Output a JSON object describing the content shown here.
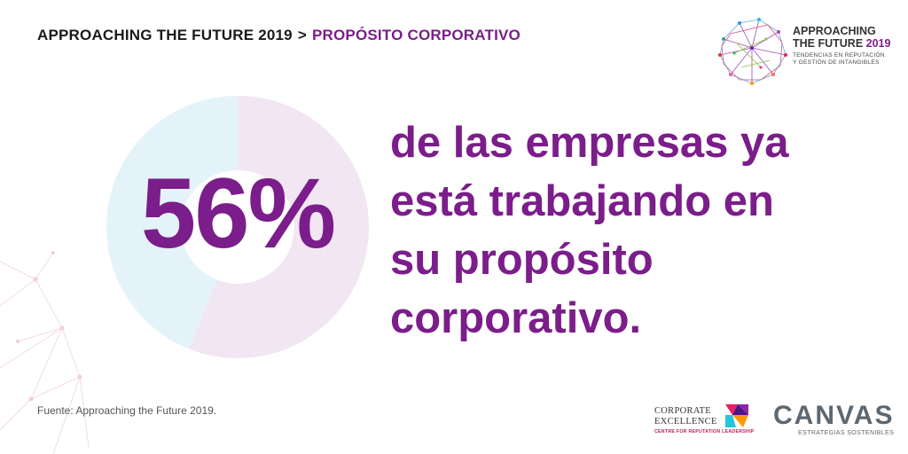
{
  "breadcrumb": {
    "root": "APPROACHING THE FUTURE 2019",
    "separator": ">",
    "current": "PROPÓSITO CORPORATIVO",
    "root_color": "#1a1a1a",
    "current_color": "#7b1d8a"
  },
  "brand": {
    "line1": "APPROACHING",
    "line2a": "THE FUTURE",
    "line2b": "2019",
    "sub1": "TENDENCIAS EN REPUTACIÓN",
    "sub2": "Y GESTIÓN DE INTANGIBLES"
  },
  "headline": {
    "line1": "de las empresas ya",
    "line2": "está trabajando en",
    "line3": "su propósito",
    "line4": "corporativo.",
    "color": "#7b1d8a"
  },
  "source_note": "Fuente: Approaching the Future 2019.",
  "partners": {
    "ce_line1": "CORPORATE",
    "ce_line2": "EXCELLENCE",
    "ce_sub": "CENTRE FOR REPUTATION LEADERSHIP",
    "canvas_name": "CANVAS",
    "canvas_sub": "ESTRATEGIAS SOSTENIBLES"
  },
  "chart_data": {
    "type": "pie",
    "variant": "donut",
    "categories": [
      "",
      ""
    ],
    "values": [
      56,
      44
    ],
    "center_label": "56%",
    "colors": [
      "#f1e6f1",
      "#e4f3fa"
    ],
    "label_color": "#7b1d8a"
  }
}
